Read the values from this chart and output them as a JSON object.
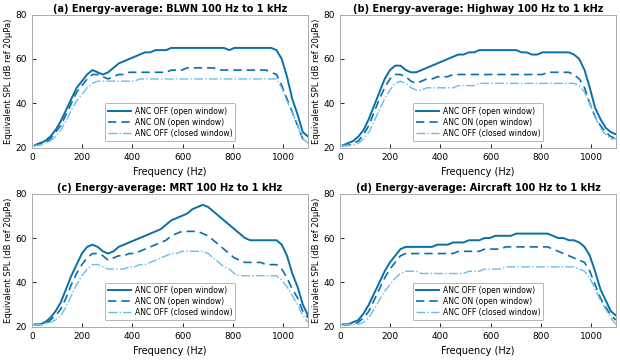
{
  "titles": [
    "(a) Energy-average: BLWN 100 Hz to 1 kHz",
    "(b) Energy-average: Highway 100 Hz to 1 kHz",
    "(c) Energy-average: MRT 100 Hz to 1 kHz",
    "(d) Energy-average: Aircraft 100 Hz to 1 kHz"
  ],
  "xlabel": "Frequency (Hz)",
  "ylabel": "Equivalent SPL (dB ref 20μPa)",
  "xlim": [
    0,
    1100
  ],
  "ylim": [
    20,
    80
  ],
  "yticks": [
    20,
    40,
    60,
    80
  ],
  "xticks": [
    0,
    200,
    400,
    600,
    800,
    1000
  ],
  "legend_labels": [
    "ANC OFF (open window)",
    "ANC ON (open window)",
    "ANC OFF (closed window)"
  ],
  "color_dark": "#0a6fa8",
  "color_light": "#6bbee8",
  "background_color": "#ffffff",
  "curves": {
    "a": {
      "off_open": [
        21,
        22,
        23,
        25,
        28,
        32,
        37,
        42,
        47,
        50,
        53,
        55,
        54,
        53,
        54,
        56,
        58,
        59,
        60,
        61,
        62,
        63,
        63,
        64,
        64,
        64,
        65,
        65,
        65,
        65,
        65,
        65,
        65,
        65,
        65,
        65,
        65,
        64,
        65,
        65,
        65,
        65,
        65,
        65,
        65,
        65,
        64,
        60,
        52,
        42,
        35,
        27,
        25
      ],
      "on_open": [
        21,
        22,
        22,
        24,
        27,
        30,
        35,
        40,
        45,
        48,
        51,
        53,
        53,
        52,
        51,
        52,
        53,
        53,
        54,
        54,
        54,
        54,
        54,
        54,
        54,
        54,
        55,
        55,
        55,
        56,
        56,
        56,
        56,
        56,
        56,
        55,
        55,
        55,
        55,
        55,
        55,
        55,
        55,
        55,
        55,
        54,
        53,
        48,
        42,
        36,
        30,
        24,
        22
      ],
      "off_closed": [
        21,
        21,
        22,
        23,
        25,
        28,
        32,
        37,
        41,
        44,
        47,
        49,
        50,
        50,
        50,
        50,
        50,
        50,
        50,
        50,
        51,
        51,
        51,
        51,
        51,
        51,
        51,
        51,
        51,
        51,
        51,
        51,
        51,
        51,
        51,
        51,
        51,
        51,
        51,
        51,
        51,
        51,
        51,
        51,
        51,
        51,
        51,
        47,
        41,
        36,
        30,
        24,
        22
      ]
    },
    "b": {
      "off_open": [
        21,
        22,
        23,
        25,
        28,
        33,
        39,
        45,
        51,
        55,
        57,
        57,
        55,
        54,
        54,
        55,
        56,
        57,
        58,
        59,
        60,
        61,
        62,
        62,
        63,
        63,
        64,
        64,
        64,
        64,
        64,
        64,
        64,
        64,
        63,
        63,
        62,
        62,
        63,
        63,
        63,
        63,
        63,
        63,
        62,
        60,
        55,
        47,
        38,
        33,
        29,
        27,
        26
      ],
      "on_open": [
        21,
        21,
        22,
        23,
        26,
        30,
        36,
        42,
        47,
        51,
        53,
        53,
        52,
        50,
        49,
        50,
        51,
        51,
        52,
        52,
        52,
        53,
        53,
        53,
        53,
        53,
        53,
        53,
        53,
        53,
        53,
        53,
        53,
        53,
        53,
        53,
        53,
        53,
        53,
        54,
        54,
        54,
        54,
        54,
        53,
        51,
        47,
        40,
        34,
        30,
        27,
        25,
        24
      ],
      "off_closed": [
        21,
        21,
        21,
        22,
        24,
        27,
        32,
        37,
        42,
        46,
        49,
        50,
        49,
        47,
        46,
        46,
        47,
        47,
        47,
        47,
        47,
        47,
        48,
        48,
        48,
        48,
        49,
        49,
        49,
        49,
        49,
        49,
        49,
        49,
        49,
        49,
        49,
        49,
        49,
        49,
        49,
        49,
        49,
        49,
        49,
        48,
        45,
        40,
        34,
        29,
        26,
        24,
        24
      ]
    },
    "c": {
      "off_open": [
        21,
        21,
        22,
        24,
        27,
        31,
        37,
        43,
        48,
        53,
        56,
        57,
        56,
        54,
        53,
        54,
        56,
        57,
        58,
        59,
        60,
        61,
        62,
        63,
        64,
        66,
        68,
        69,
        70,
        71,
        73,
        74,
        75,
        74,
        72,
        70,
        68,
        66,
        64,
        62,
        60,
        59,
        59,
        59,
        59,
        59,
        59,
        57,
        52,
        44,
        38,
        30,
        25
      ],
      "on_open": [
        21,
        21,
        21,
        23,
        25,
        28,
        33,
        39,
        44,
        48,
        51,
        53,
        53,
        52,
        50,
        51,
        52,
        52,
        53,
        53,
        54,
        55,
        56,
        57,
        58,
        59,
        61,
        62,
        63,
        63,
        63,
        63,
        62,
        61,
        59,
        57,
        55,
        53,
        51,
        50,
        49,
        49,
        49,
        49,
        48,
        48,
        48,
        46,
        42,
        37,
        33,
        27,
        24
      ],
      "off_closed": [
        21,
        21,
        21,
        22,
        23,
        25,
        29,
        34,
        39,
        43,
        46,
        48,
        48,
        47,
        46,
        46,
        46,
        46,
        47,
        47,
        48,
        48,
        49,
        50,
        51,
        52,
        53,
        53,
        54,
        54,
        54,
        54,
        54,
        53,
        51,
        49,
        47,
        46,
        44,
        43,
        43,
        43,
        43,
        43,
        43,
        43,
        43,
        41,
        38,
        34,
        30,
        25,
        22
      ]
    },
    "d": {
      "off_open": [
        21,
        21,
        22,
        23,
        26,
        30,
        35,
        40,
        45,
        49,
        52,
        55,
        56,
        56,
        56,
        56,
        56,
        56,
        57,
        57,
        57,
        58,
        58,
        58,
        59,
        59,
        59,
        60,
        60,
        61,
        61,
        61,
        61,
        62,
        62,
        62,
        62,
        62,
        62,
        62,
        61,
        60,
        60,
        59,
        59,
        58,
        56,
        52,
        45,
        37,
        32,
        27,
        25
      ],
      "on_open": [
        21,
        21,
        21,
        22,
        24,
        27,
        32,
        37,
        42,
        46,
        49,
        52,
        53,
        53,
        53,
        53,
        53,
        53,
        53,
        53,
        53,
        53,
        54,
        54,
        54,
        54,
        54,
        55,
        55,
        55,
        55,
        56,
        56,
        56,
        56,
        56,
        56,
        56,
        56,
        56,
        55,
        54,
        53,
        52,
        51,
        50,
        49,
        45,
        39,
        33,
        29,
        25,
        23
      ],
      "off_closed": [
        21,
        21,
        21,
        21,
        22,
        24,
        28,
        32,
        36,
        39,
        42,
        44,
        45,
        45,
        45,
        44,
        44,
        44,
        44,
        44,
        44,
        44,
        44,
        44,
        45,
        45,
        45,
        46,
        46,
        46,
        46,
        47,
        47,
        47,
        47,
        47,
        47,
        47,
        47,
        47,
        47,
        47,
        47,
        47,
        47,
        46,
        45,
        42,
        37,
        32,
        28,
        24,
        21
      ]
    }
  }
}
